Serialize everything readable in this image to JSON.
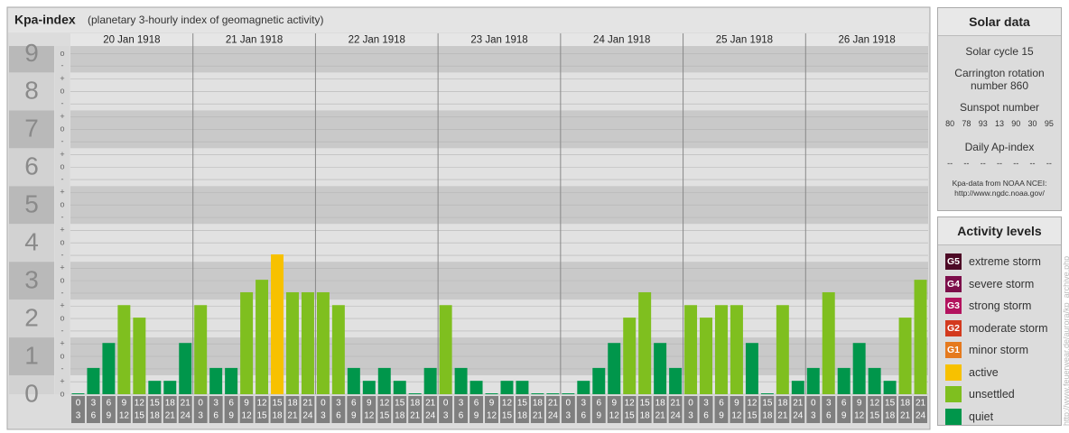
{
  "chart_data": {
    "type": "bar",
    "title": "Kpa-index",
    "subtitle": "(planetary 3-hourly index of geomagnetic activity)",
    "ylim": [
      0,
      9.2
    ],
    "yticks": [
      0,
      1,
      2,
      3,
      4,
      5,
      6,
      7,
      8,
      9
    ],
    "minor_ticks": [
      {
        "value": 0,
        "label": "o"
      },
      {
        "value": 0.33,
        "label": "+"
      },
      {
        "value": 0.67,
        "label": "-"
      },
      {
        "value": 1,
        "label": "o"
      },
      {
        "value": 1.33,
        "label": "+"
      },
      {
        "value": 1.67,
        "label": "-"
      },
      {
        "value": 2,
        "label": "o"
      },
      {
        "value": 2.33,
        "label": "+"
      },
      {
        "value": 2.67,
        "label": "-"
      },
      {
        "value": 3,
        "label": "o"
      },
      {
        "value": 3.33,
        "label": "+"
      },
      {
        "value": 3.67,
        "label": "-"
      },
      {
        "value": 4,
        "label": "o"
      },
      {
        "value": 4.33,
        "label": "+"
      },
      {
        "value": 4.67,
        "label": "-"
      },
      {
        "value": 5,
        "label": "o"
      },
      {
        "value": 5.33,
        "label": "+"
      },
      {
        "value": 5.67,
        "label": "-"
      },
      {
        "value": 6,
        "label": "o"
      },
      {
        "value": 6.33,
        "label": "+"
      },
      {
        "value": 6.67,
        "label": "-"
      },
      {
        "value": 7,
        "label": "o"
      },
      {
        "value": 7.33,
        "label": "+"
      },
      {
        "value": 7.67,
        "label": "-"
      },
      {
        "value": 8,
        "label": "o"
      },
      {
        "value": 8.33,
        "label": "+"
      },
      {
        "value": 8.67,
        "label": "-"
      },
      {
        "value": 9,
        "label": "o"
      }
    ],
    "slot_starts": [
      "0",
      "3",
      "6",
      "9",
      "12",
      "15",
      "18",
      "21"
    ],
    "slot_ends": [
      "3",
      "6",
      "9",
      "12",
      "15",
      "18",
      "21",
      "24"
    ],
    "days": [
      {
        "date": "20 Jan 1918",
        "values": [
          0,
          0.67,
          1.33,
          2.33,
          2,
          0.33,
          0.33,
          1.33
        ],
        "colors": [
          "#00964b",
          "#00964b",
          "#00964b",
          "#7fbf1f",
          "#7fbf1f",
          "#00964b",
          "#00964b",
          "#00964b"
        ]
      },
      {
        "date": "21 Jan 1918",
        "values": [
          2.33,
          0.67,
          0.67,
          2.67,
          3,
          3.67,
          2.67,
          2.67
        ],
        "colors": [
          "#7fbf1f",
          "#00964b",
          "#00964b",
          "#7fbf1f",
          "#7fbf1f",
          "#f7c100",
          "#7fbf1f",
          "#7fbf1f"
        ]
      },
      {
        "date": "22 Jan 1918",
        "values": [
          2.67,
          2.33,
          0.67,
          0.33,
          0.67,
          0.33,
          0,
          0.67
        ],
        "colors": [
          "#7fbf1f",
          "#7fbf1f",
          "#00964b",
          "#00964b",
          "#00964b",
          "#00964b",
          "#00964b",
          "#00964b"
        ]
      },
      {
        "date": "23 Jan 1918",
        "values": [
          2.33,
          0.67,
          0.33,
          0,
          0.33,
          0.33,
          0,
          0
        ],
        "colors": [
          "#7fbf1f",
          "#00964b",
          "#00964b",
          "#00964b",
          "#00964b",
          "#00964b",
          "#00964b",
          "#00964b"
        ]
      },
      {
        "date": "24 Jan 1918",
        "values": [
          0,
          0.33,
          0.67,
          1.33,
          2,
          2.67,
          1.33,
          0.67
        ],
        "colors": [
          "#00964b",
          "#00964b",
          "#00964b",
          "#00964b",
          "#7fbf1f",
          "#7fbf1f",
          "#00964b",
          "#00964b"
        ]
      },
      {
        "date": "25 Jan 1918",
        "values": [
          2.33,
          2,
          2.33,
          2.33,
          1.33,
          0,
          2.33,
          0.33
        ],
        "colors": [
          "#7fbf1f",
          "#7fbf1f",
          "#7fbf1f",
          "#7fbf1f",
          "#00964b",
          "#00964b",
          "#7fbf1f",
          "#00964b"
        ]
      },
      {
        "date": "26 Jan 1918",
        "values": [
          0.67,
          2.67,
          0.67,
          1.33,
          0.67,
          0.33,
          2,
          3
        ],
        "colors": [
          "#00964b",
          "#7fbf1f",
          "#00964b",
          "#00964b",
          "#00964b",
          "#00964b",
          "#7fbf1f",
          "#7fbf1f"
        ]
      }
    ]
  },
  "solar_data": {
    "title": "Solar data",
    "cycle": "Solar cycle 15",
    "carrington": "Carrington rotation number 860",
    "sunspot_title": "Sunspot number",
    "sunspots": [
      80,
      78,
      93,
      13,
      90,
      30,
      95
    ],
    "ap_title": "Daily Ap-index",
    "ap": [
      "--",
      "--",
      "--",
      "--",
      "--",
      "--",
      "--"
    ],
    "source": "Kpa-data from NOAA NCEI:",
    "source_url": "http://www.ngdc.noaa.gov/"
  },
  "activity_levels": {
    "title": "Activity levels",
    "items": [
      {
        "badge": "G5",
        "label": "extreme storm",
        "color": "#4d0a26"
      },
      {
        "badge": "G4",
        "label": "severe storm",
        "color": "#7c0e4a"
      },
      {
        "badge": "G3",
        "label": "strong storm",
        "color": "#b3125e"
      },
      {
        "badge": "G2",
        "label": "moderate storm",
        "color": "#d33a1e"
      },
      {
        "badge": "G1",
        "label": "minor storm",
        "color": "#e57a1e"
      },
      {
        "label": "active",
        "color": "#f7c100"
      },
      {
        "label": "unsettled",
        "color": "#7fbf1f"
      },
      {
        "label": "quiet",
        "color": "#00964b"
      }
    ]
  },
  "watermark": "http://www.feuerwear.de/aurora/kp_archive.php"
}
